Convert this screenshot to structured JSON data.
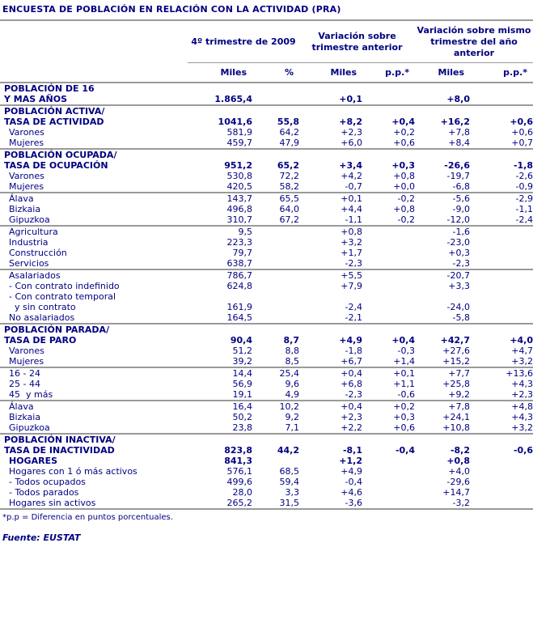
{
  "title": "ENCUESTA DE POBLACIÓN EN RELACIÓN CON LA ACTIVIDAD (PRA)",
  "colors": {
    "text": "#000080",
    "rule": "#9a9a9a",
    "background": "#ffffff"
  },
  "table": {
    "col_groups": [
      {
        "label": "4º trimestre de 2009",
        "cols": [
          "Miles",
          "%"
        ]
      },
      {
        "label": "Variación sobre trimestre anterior",
        "cols": [
          "Miles",
          "p.p.*"
        ]
      },
      {
        "label": "Variación sobre mismo trimestre del año anterior",
        "cols": [
          "Miles",
          "p.p.*"
        ]
      }
    ],
    "rows": [
      {
        "label": [
          "POBLACIÓN DE 16",
          "Y MAS AÑOS"
        ],
        "style": "section",
        "divider": false,
        "values": [
          "1.865,4",
          "",
          "+0,1",
          "",
          "+8,0",
          ""
        ]
      },
      {
        "label": [
          "POBLACIÓN ACTIVA/",
          "TASA DE ACTIVIDAD"
        ],
        "style": "section",
        "divider": true,
        "values": [
          "1041,6",
          "55,8",
          "+8,2",
          "+0,4",
          "+16,2",
          "+0,6"
        ]
      },
      {
        "label": [
          "Varones"
        ],
        "style": "sub",
        "divider": false,
        "values": [
          "581,9",
          "64,2",
          "+2,3",
          "+0,2",
          "+7,8",
          "+0,6"
        ]
      },
      {
        "label": [
          "Mujeres"
        ],
        "style": "sub",
        "divider": false,
        "values": [
          "459,7",
          "47,9",
          "+6,0",
          "+0,6",
          "+8,4",
          "+0,7"
        ]
      },
      {
        "label": [
          "POBLACIÓN OCUPADA/",
          "TASA DE OCUPACIÓN"
        ],
        "style": "section",
        "divider": true,
        "values": [
          "951,2",
          "65,2",
          "+3,4",
          "+0,3",
          "-26,6",
          "-1,8"
        ]
      },
      {
        "label": [
          "Varones"
        ],
        "style": "sub",
        "divider": false,
        "values": [
          "530,8",
          "72,2",
          "+4,2",
          "+0,8",
          "-19,7",
          "-2,6"
        ]
      },
      {
        "label": [
          "Mujeres"
        ],
        "style": "sub",
        "divider": false,
        "values": [
          "420,5",
          "58,2",
          "-0,7",
          "+0,0",
          "-6,8",
          "-0,9"
        ]
      },
      {
        "label": [
          "Álava"
        ],
        "style": "sub",
        "divider": true,
        "values": [
          "143,7",
          "65,5",
          "+0,1",
          "-0,2",
          "-5,6",
          "-2,9"
        ]
      },
      {
        "label": [
          "Bizkaia"
        ],
        "style": "sub",
        "divider": false,
        "values": [
          "496,8",
          "64,0",
          "+4,4",
          "+0,8",
          "-9,0",
          "-1,1"
        ]
      },
      {
        "label": [
          "Gipuzkoa"
        ],
        "style": "sub",
        "divider": false,
        "values": [
          "310,7",
          "67,2",
          "-1,1",
          "-0,2",
          "-12,0",
          "-2,4"
        ]
      },
      {
        "label": [
          "Agricultura"
        ],
        "style": "sub",
        "divider": true,
        "values": [
          "9,5",
          "",
          "+0,8",
          "",
          "-1,6",
          ""
        ]
      },
      {
        "label": [
          "Industria"
        ],
        "style": "sub",
        "divider": false,
        "values": [
          "223,3",
          "",
          "+3,2",
          "",
          "-23,0",
          ""
        ]
      },
      {
        "label": [
          "Construcción"
        ],
        "style": "sub",
        "divider": false,
        "values": [
          "79,7",
          "",
          "+1,7",
          "",
          "+0,3",
          ""
        ]
      },
      {
        "label": [
          "Servicios"
        ],
        "style": "sub",
        "divider": false,
        "values": [
          "638,7",
          "",
          "-2,3",
          "",
          "-2,3",
          ""
        ]
      },
      {
        "label": [
          "Asalariados"
        ],
        "style": "sub",
        "divider": true,
        "values": [
          "786,7",
          "",
          "+5,5",
          "",
          "-20,7",
          ""
        ]
      },
      {
        "label": [
          "- Con contrato indefinido"
        ],
        "style": "sub",
        "divider": false,
        "values": [
          "624,8",
          "",
          "+7,9",
          "",
          "+3,3",
          ""
        ]
      },
      {
        "label": [
          "- Con contrato temporal",
          "  y sin contrato"
        ],
        "style": "sub",
        "divider": false,
        "values": [
          "161,9",
          "",
          "-2,4",
          "",
          "-24,0",
          ""
        ]
      },
      {
        "label": [
          "No asalariados"
        ],
        "style": "sub",
        "divider": false,
        "values": [
          "164,5",
          "",
          "-2,1",
          "",
          "-5,8",
          ""
        ]
      },
      {
        "label": [
          "POBLACIÓN PARADA/",
          "TASA DE PARO"
        ],
        "style": "section",
        "divider": true,
        "values": [
          "90,4",
          "8,7",
          "+4,9",
          "+0,4",
          "+42,7",
          "+4,0"
        ]
      },
      {
        "label": [
          "Varones"
        ],
        "style": "sub",
        "divider": false,
        "values": [
          "51,2",
          "8,8",
          "-1,8",
          "-0,3",
          "+27,6",
          "+4,7"
        ]
      },
      {
        "label": [
          "Mujeres"
        ],
        "style": "sub",
        "divider": false,
        "values": [
          "39,2",
          "8,5",
          "+6,7",
          "+1,4",
          "+15,2",
          "+3,2"
        ]
      },
      {
        "label": [
          "16 - 24"
        ],
        "style": "sub",
        "divider": true,
        "values": [
          "14,4",
          "25,4",
          "+0,4",
          "+0,1",
          "+7,7",
          "+13,6"
        ]
      },
      {
        "label": [
          "25 - 44"
        ],
        "style": "sub",
        "divider": false,
        "values": [
          "56,9",
          "9,6",
          "+6,8",
          "+1,1",
          "+25,8",
          "+4,3"
        ]
      },
      {
        "label": [
          "45  y más"
        ],
        "style": "sub",
        "divider": false,
        "values": [
          "19,1",
          "4,9",
          "-2,3",
          "-0,6",
          "+9,2",
          "+2,3"
        ]
      },
      {
        "label": [
          "Álava"
        ],
        "style": "sub",
        "divider": true,
        "values": [
          "16,4",
          "10,2",
          "+0,4",
          "+0,2",
          "+7,8",
          "+4,8"
        ]
      },
      {
        "label": [
          "Bizkaia"
        ],
        "style": "sub",
        "divider": false,
        "values": [
          "50,2",
          "9,2",
          "+2,3",
          "+0,3",
          "+24,1",
          "+4,3"
        ]
      },
      {
        "label": [
          "Gipuzkoa"
        ],
        "style": "sub",
        "divider": false,
        "values": [
          "23,8",
          "7,1",
          "+2,2",
          "+0,6",
          "+10,8",
          "+3,2"
        ]
      },
      {
        "label": [
          "POBLACIÓN INACTIVA/",
          "TASA DE INACTIVIDAD"
        ],
        "style": "section",
        "divider": true,
        "values": [
          "823,8",
          "44,2",
          "-8,1",
          "-0,4",
          "-8,2",
          "-0,6"
        ]
      },
      {
        "label": [
          "HOGARES"
        ],
        "style": "boldsub",
        "divider": false,
        "values": [
          "841,3",
          "",
          "+1,2",
          "",
          "+0,8",
          ""
        ]
      },
      {
        "label": [
          "Hogares con 1 ó más activos"
        ],
        "style": "sub",
        "divider": false,
        "values": [
          "576,1",
          "68,5",
          "+4,9",
          "",
          "+4,0",
          ""
        ]
      },
      {
        "label": [
          "- Todos ocupados"
        ],
        "style": "sub",
        "divider": false,
        "values": [
          "499,6",
          "59,4",
          "-0,4",
          "",
          "-29,6",
          ""
        ]
      },
      {
        "label": [
          "- Todos parados"
        ],
        "style": "sub",
        "divider": false,
        "values": [
          "28,0",
          "3,3",
          "+4,6",
          "",
          "+14,7",
          ""
        ]
      },
      {
        "label": [
          "Hogares sin activos"
        ],
        "style": "sub",
        "divider": false,
        "values": [
          "265,2",
          "31,5",
          "-3,6",
          "",
          "-3,2",
          ""
        ]
      }
    ]
  },
  "footnote": "*p.p = Diferencia en puntos porcentuales.",
  "source": "Fuente: EUSTAT"
}
